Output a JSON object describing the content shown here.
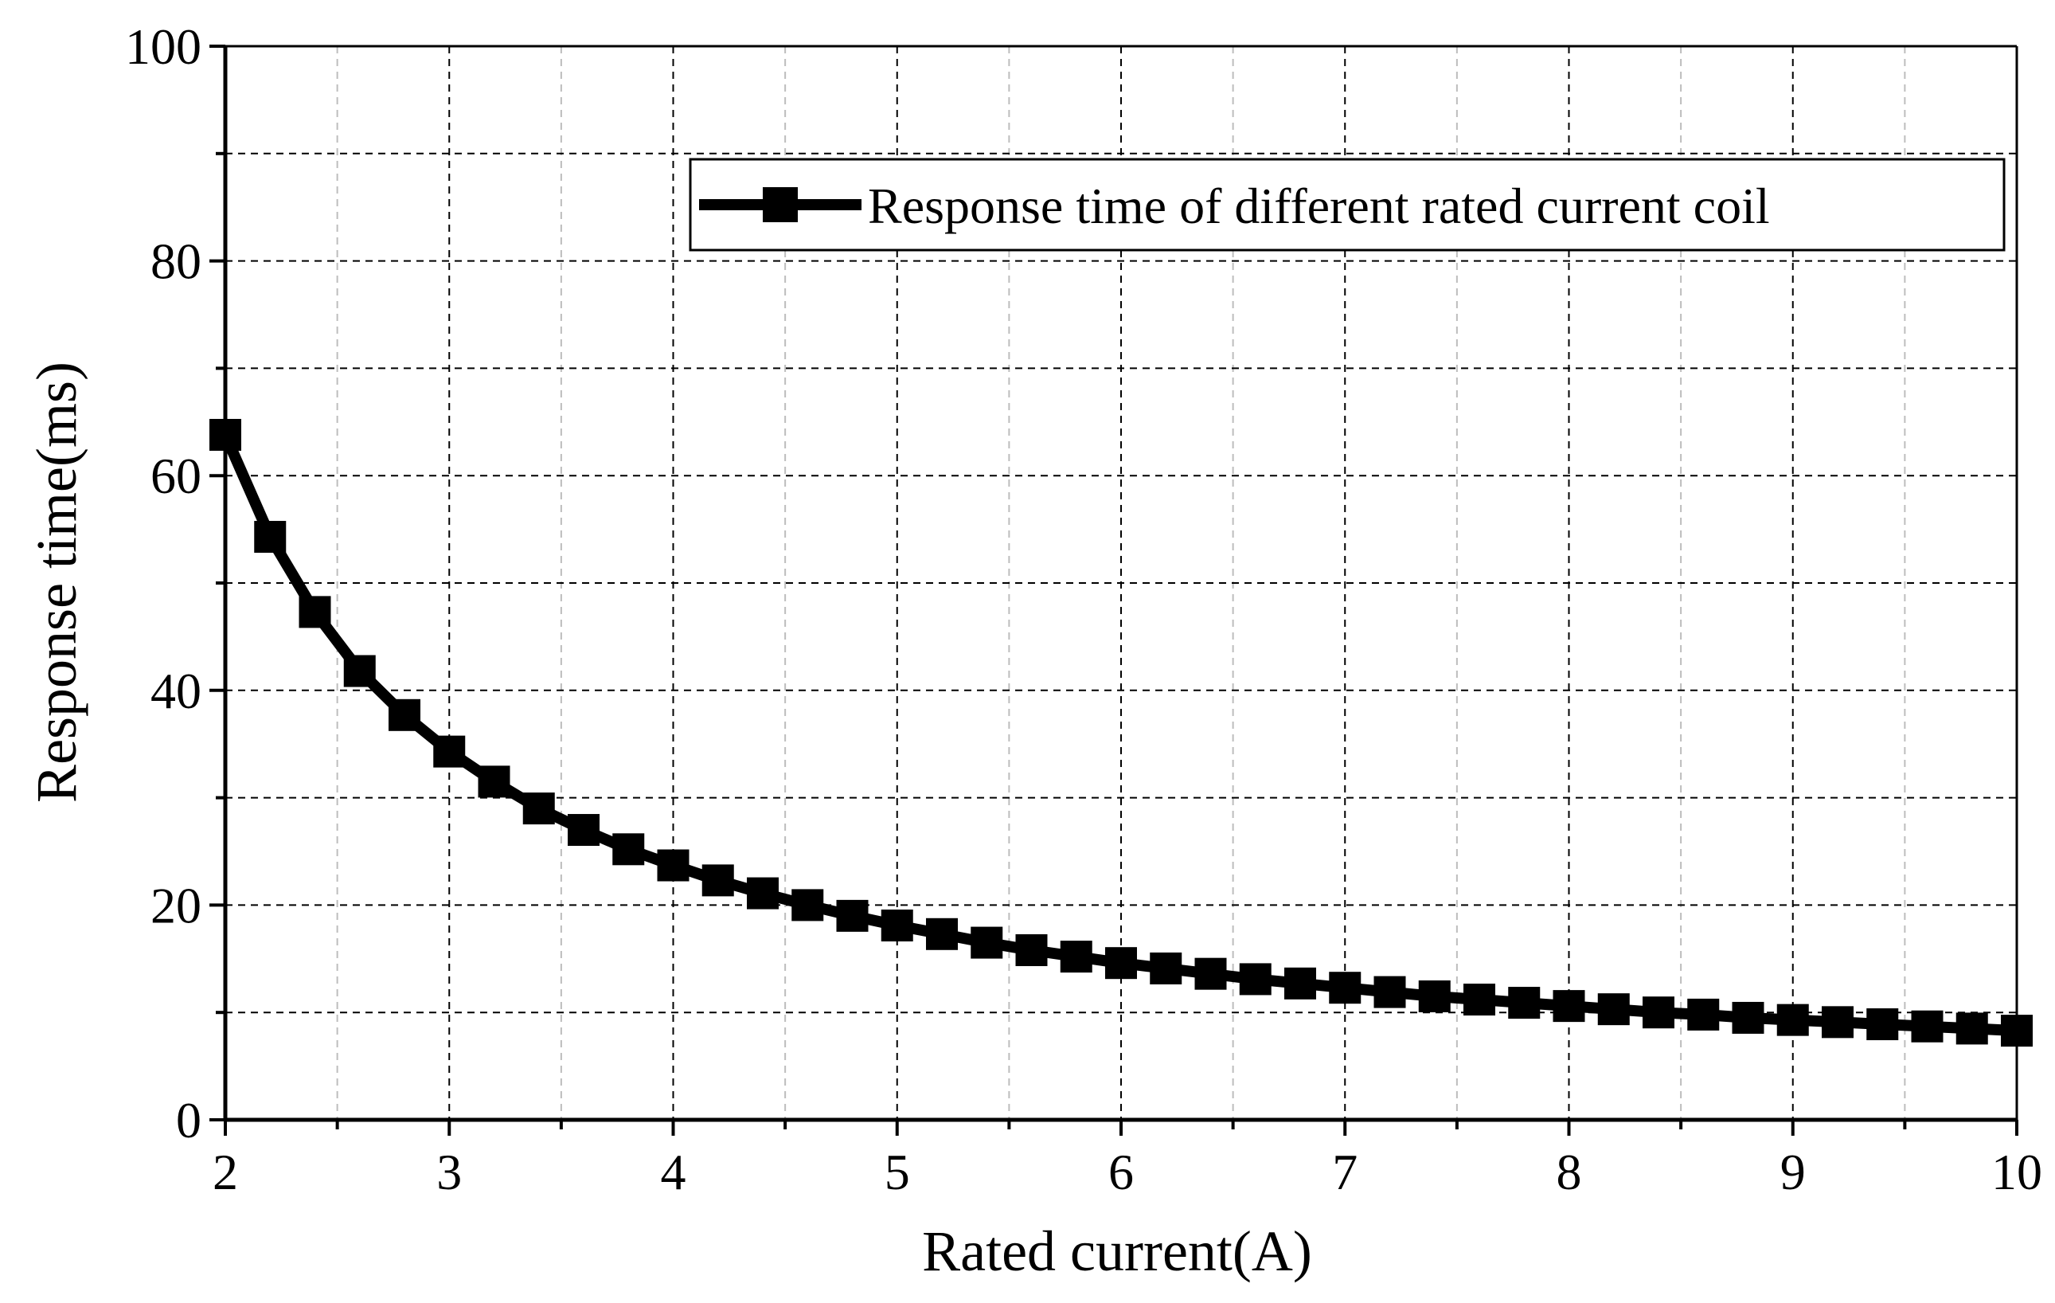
{
  "chart_data": {
    "type": "line",
    "title": "",
    "xlabel": "Rated current(A)",
    "ylabel": "Response time(ms)",
    "xlim": [
      2,
      10
    ],
    "ylim": [
      0,
      100
    ],
    "x_ticks": [
      2,
      3,
      4,
      5,
      6,
      7,
      8,
      9,
      10
    ],
    "y_ticks": [
      0,
      20,
      40,
      60,
      80,
      100
    ],
    "x_tick_labels": [
      "2",
      "3",
      "4",
      "5",
      "6",
      "7",
      "8",
      "9",
      "10"
    ],
    "y_tick_labels": [
      "0",
      "20",
      "40",
      "60",
      "80",
      "100"
    ],
    "grid": true,
    "legend_position": "top-right",
    "series": [
      {
        "name": "Response time of different rated current coil",
        "color": "#000000",
        "marker": "square",
        "x": [
          2.0,
          2.2,
          2.4,
          2.6,
          2.8,
          3.0,
          3.2,
          3.4,
          3.6,
          3.8,
          4.0,
          4.2,
          4.4,
          4.6,
          4.8,
          5.0,
          5.2,
          5.4,
          5.6,
          5.8,
          6.0,
          6.2,
          6.4,
          6.6,
          6.8,
          7.0,
          7.2,
          7.4,
          7.6,
          7.8,
          8.0,
          8.2,
          8.4,
          8.6,
          8.8,
          9.0,
          9.2,
          9.4,
          9.6,
          9.8,
          10.0
        ],
        "values": [
          63.8,
          54.3,
          47.3,
          41.8,
          37.7,
          34.3,
          31.5,
          29.0,
          27.0,
          25.2,
          23.7,
          22.3,
          21.1,
          20.0,
          19.0,
          18.1,
          17.3,
          16.5,
          15.8,
          15.2,
          14.6,
          14.1,
          13.6,
          13.1,
          12.7,
          12.3,
          11.9,
          11.5,
          11.2,
          10.9,
          10.6,
          10.3,
          10.0,
          9.8,
          9.5,
          9.3,
          9.1,
          8.9,
          8.7,
          8.5,
          8.3
        ]
      }
    ]
  }
}
